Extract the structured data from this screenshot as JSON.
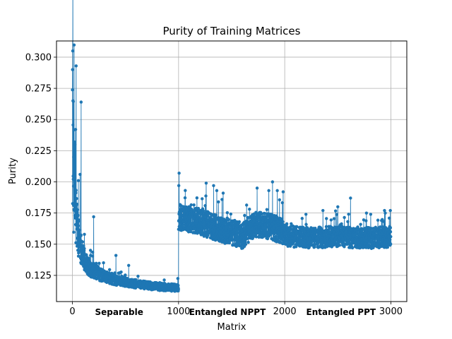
{
  "chart_data": {
    "type": "line",
    "title": "Purity of Training Matrices",
    "xlabel": "Matrix",
    "ylabel": "Purity",
    "xlim": [
      -150,
      3150
    ],
    "ylim": [
      0.104,
      0.313
    ],
    "grid": true,
    "x_ticks": [
      0,
      1000,
      2000,
      3000
    ],
    "y_ticks": [
      0.125,
      0.15,
      0.175,
      0.2,
      0.225,
      0.25,
      0.275,
      0.3
    ],
    "x_tick_labels": [
      "0",
      "1000",
      "2000",
      "3000"
    ],
    "y_tick_labels": [
      "0.125",
      "0.150",
      "0.175",
      "0.200",
      "0.225",
      "0.250",
      "0.275",
      "0.300"
    ],
    "series_color": "#1f77b4",
    "series_name": "Purity",
    "n_points": 3000,
    "annotations": [
      {
        "text": "Separable",
        "x": 440
      },
      {
        "text": "Entangled NPPT",
        "x": 1460
      },
      {
        "text": "Entangled PPT",
        "x": 2530
      }
    ],
    "segments": [
      {
        "name": "Separable",
        "x_range": [
          0,
          999
        ],
        "trend": [
          [
            0,
            0.245
          ],
          [
            10,
            0.205
          ],
          [
            30,
            0.175
          ],
          [
            60,
            0.155
          ],
          [
            100,
            0.14
          ],
          [
            150,
            0.132
          ],
          [
            250,
            0.126
          ],
          [
            400,
            0.121
          ],
          [
            600,
            0.118
          ],
          [
            800,
            0.116
          ],
          [
            999,
            0.115
          ]
        ],
        "peaks": [
          [
            3,
            0.305
          ],
          [
            1,
            0.29
          ],
          [
            5,
            0.265
          ],
          [
            35,
            0.293
          ],
          [
            30,
            0.242
          ],
          [
            24,
            0.23
          ],
          [
            82,
            0.264
          ],
          [
            72,
            0.206
          ],
          [
            200,
            0.172
          ],
          [
            410,
            0.141
          ],
          [
            530,
            0.133
          ],
          [
            1000,
            0.123
          ]
        ]
      },
      {
        "name": "Entangled NPPT",
        "x_range": [
          1000,
          1999
        ],
        "trend": [
          [
            1000,
            0.172
          ],
          [
            1200,
            0.168
          ],
          [
            1400,
            0.162
          ],
          [
            1600,
            0.157
          ],
          [
            1700,
            0.165
          ],
          [
            1800,
            0.166
          ],
          [
            1900,
            0.163
          ],
          [
            1999,
            0.16
          ]
        ],
        "peaks": [
          [
            1005,
            0.207
          ],
          [
            1002,
            0.197
          ],
          [
            1260,
            0.199
          ],
          [
            1330,
            0.197
          ],
          [
            1360,
            0.193
          ],
          [
            1420,
            0.191
          ],
          [
            1740,
            0.195
          ],
          [
            1850,
            0.193
          ],
          [
            1885,
            0.2
          ],
          [
            1930,
            0.193
          ],
          [
            1985,
            0.192
          ]
        ]
      },
      {
        "name": "Entangled PPT",
        "x_range": [
          2000,
          2999
        ],
        "trend": [
          [
            2000,
            0.157
          ],
          [
            2200,
            0.155
          ],
          [
            2500,
            0.156
          ],
          [
            2800,
            0.155
          ],
          [
            2999,
            0.156
          ]
        ],
        "peaks": [
          [
            2200,
            0.174
          ],
          [
            2360,
            0.177
          ],
          [
            2500,
            0.18
          ],
          [
            2620,
            0.187
          ],
          [
            2770,
            0.175
          ],
          [
            2810,
            0.174
          ],
          [
            2940,
            0.177
          ],
          [
            2995,
            0.177
          ]
        ]
      }
    ]
  }
}
